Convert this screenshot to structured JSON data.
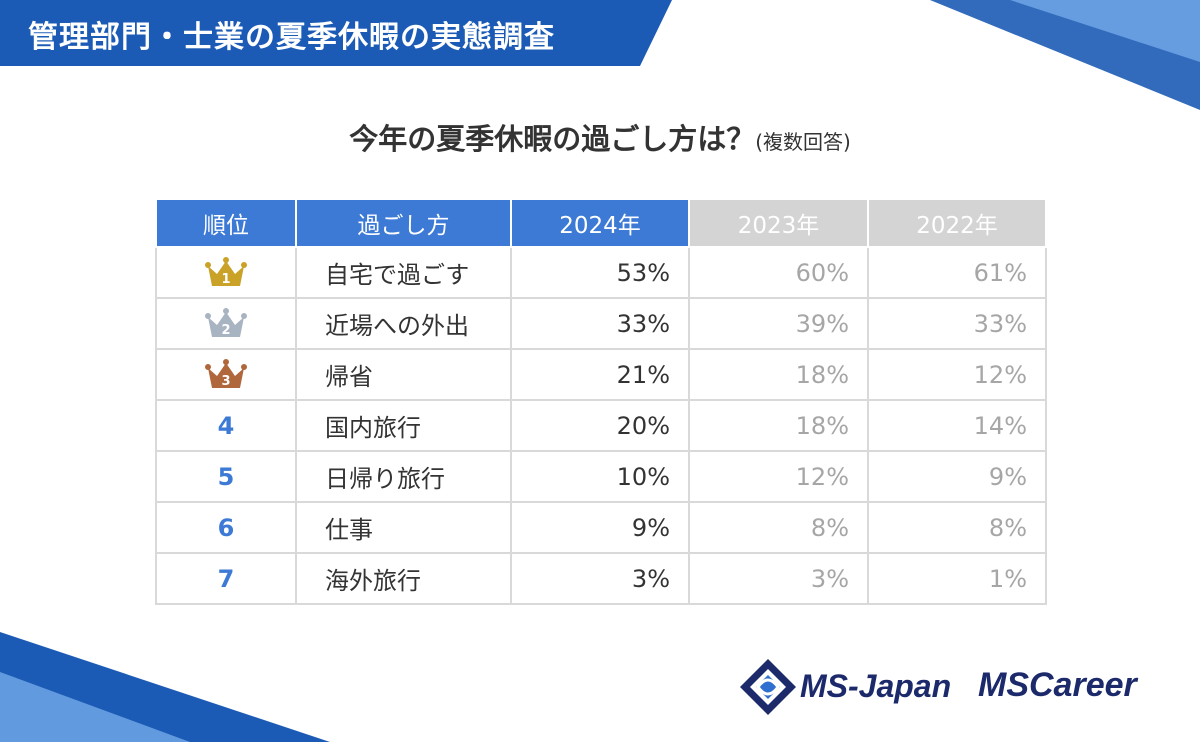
{
  "header": {
    "title": "管理部門・士業の夏季休暇の実態調査"
  },
  "question": {
    "text": "今年の夏季休暇の過ごし方は？",
    "note": "(複数回答)"
  },
  "colors": {
    "accent": "#3d7ad6",
    "banner": "#1c5bb5",
    "header_old": "#d4d4d4",
    "rank1": "#c9a227",
    "rank2": "#a9b4c2",
    "rank3": "#b0673b",
    "logo_navy": "#1c2a6b"
  },
  "chart_data": {
    "type": "table",
    "columns": [
      "順位",
      "過ごし方",
      "2024年",
      "2023年",
      "2022年"
    ],
    "rows": [
      {
        "rank": "1",
        "rank_icon": "gold-crown-icon",
        "item": "自宅で過ごす",
        "y2024": "53%",
        "y2023": "60%",
        "y2022": "61%"
      },
      {
        "rank": "2",
        "rank_icon": "silver-crown-icon",
        "item": "近場への外出",
        "y2024": "33%",
        "y2023": "39%",
        "y2022": "33%"
      },
      {
        "rank": "3",
        "rank_icon": "bronze-crown-icon",
        "item": "帰省",
        "y2024": "21%",
        "y2023": "18%",
        "y2022": "12%"
      },
      {
        "rank": "4",
        "item": "国内旅行",
        "y2024": "20%",
        "y2023": "18%",
        "y2022": "14%"
      },
      {
        "rank": "5",
        "item": "日帰り旅行",
        "y2024": "10%",
        "y2023": "12%",
        "y2022": "9%"
      },
      {
        "rank": "6",
        "item": "仕事",
        "y2024": "9%",
        "y2023": "8%",
        "y2022": "8%"
      },
      {
        "rank": "7",
        "item": "海外旅行",
        "y2024": "3%",
        "y2023": "3%",
        "y2022": "1%"
      }
    ]
  },
  "footer": {
    "logo1": "MS-Japan",
    "logo2": "MSCareer"
  }
}
